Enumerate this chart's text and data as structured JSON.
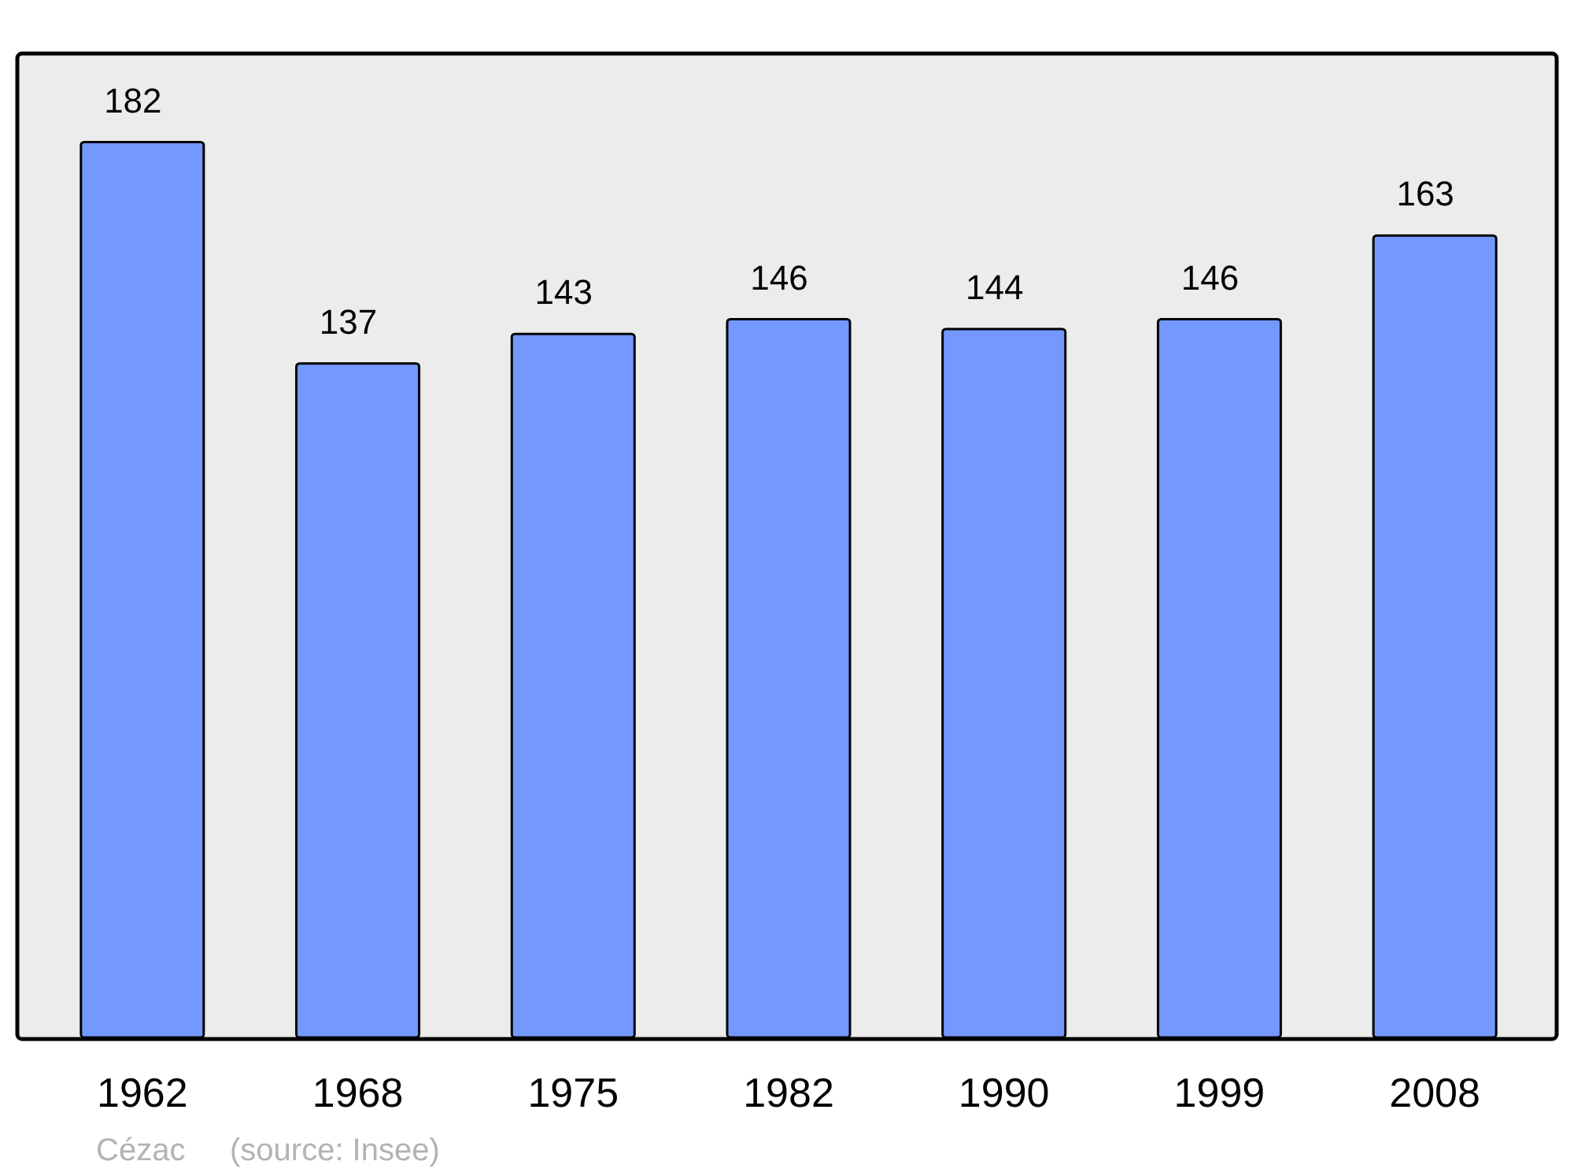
{
  "chart_data": {
    "type": "bar",
    "categories": [
      "1962",
      "1968",
      "1975",
      "1982",
      "1990",
      "1999",
      "2008"
    ],
    "values": [
      182,
      137,
      143,
      146,
      144,
      146,
      163
    ],
    "color": "#7399ff",
    "ylim": [
      0,
      200
    ],
    "data_labels": true,
    "tick_labels": "x",
    "annotations": [
      "Cézac",
      "(source: Insee)"
    ]
  }
}
